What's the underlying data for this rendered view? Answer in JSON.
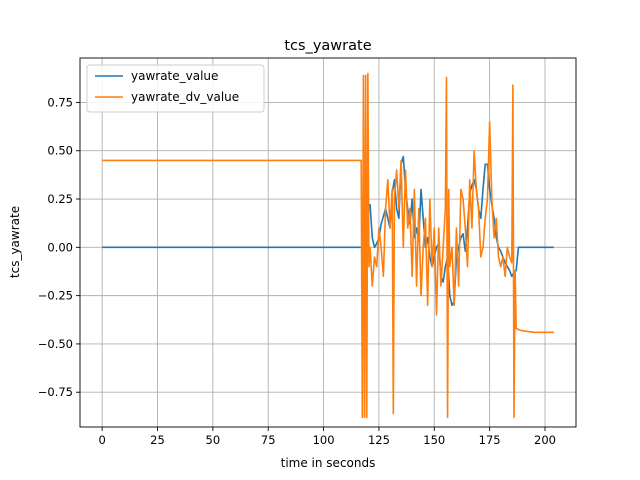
{
  "chart_data": {
    "type": "line",
    "title": "tcs_yawrate",
    "xlabel": "time in seconds",
    "ylabel": "tcs_yawrate",
    "xlim": [
      -10,
      214
    ],
    "ylim": [
      -0.93,
      0.98
    ],
    "xticks": [
      0,
      25,
      50,
      75,
      100,
      125,
      150,
      175,
      200
    ],
    "yticks": [
      -0.75,
      -0.5,
      -0.25,
      0.0,
      0.25,
      0.5,
      0.75
    ],
    "xtick_labels": [
      "0",
      "25",
      "50",
      "75",
      "100",
      "125",
      "150",
      "175",
      "200"
    ],
    "ytick_labels": [
      "−0.75",
      "−0.50",
      "−0.25",
      "0.00",
      "0.25",
      "0.50",
      "0.75"
    ],
    "grid": true,
    "legend_position": "top-left",
    "series": [
      {
        "name": "yawrate_value",
        "color": "#1f77b4",
        "x": [
          0,
          117,
          118,
          119,
          120,
          121,
          122,
          123,
          124,
          125,
          126,
          128,
          130,
          131,
          132,
          133,
          134,
          135,
          136,
          137,
          138,
          139,
          140,
          141,
          142,
          143,
          144,
          145,
          146,
          147,
          148,
          149,
          150,
          151,
          152,
          153,
          154,
          155,
          156,
          157,
          158,
          159,
          160,
          161,
          162,
          163,
          164,
          165,
          166,
          167,
          168,
          169,
          170,
          171,
          172,
          173,
          174,
          175,
          176,
          177,
          178,
          179,
          180,
          181,
          182,
          183,
          184,
          185,
          186,
          187,
          188,
          204
        ],
        "y": [
          0,
          0,
          0.01,
          0.05,
          0.22,
          0.22,
          0.05,
          0.0,
          0.02,
          0.05,
          0.12,
          0.2,
          0.1,
          0.28,
          0.35,
          0.2,
          0.15,
          0.43,
          0.47,
          0.3,
          0.2,
          0.12,
          0.25,
          0.05,
          0.1,
          0.03,
          0.3,
          0.15,
          0.0,
          0.05,
          -0.05,
          -0.1,
          -0.05,
          0.0,
          0.02,
          -0.15,
          -0.18,
          -0.1,
          -0.05,
          -0.25,
          -0.3,
          -0.28,
          -0.05,
          0.0,
          0.05,
          0.07,
          -0.02,
          0.1,
          0.28,
          0.32,
          0.35,
          0.3,
          0.2,
          0.15,
          0.3,
          0.43,
          0.43,
          0.3,
          0.22,
          0.15,
          0.05,
          0.0,
          -0.02,
          -0.05,
          -0.08,
          -0.1,
          -0.12,
          -0.15,
          -0.13,
          -0.12,
          0.0,
          0.0
        ]
      },
      {
        "name": "yawrate_dv_value",
        "color": "#ff7f0e",
        "x": [
          0,
          117,
          117.5,
          118,
          118.5,
          119,
          119.5,
          120,
          120.5,
          121,
          122,
          123,
          124,
          125,
          126,
          127,
          128,
          129,
          130,
          131,
          131.5,
          132,
          133,
          134,
          135,
          136,
          137,
          138,
          139,
          140,
          141,
          142,
          143,
          144,
          145,
          146,
          147,
          148,
          149,
          150,
          151,
          152,
          153,
          154,
          155,
          155.5,
          156,
          156.5,
          157,
          158,
          159,
          160,
          161,
          162,
          163,
          164,
          165,
          166,
          167,
          168,
          169,
          170,
          171,
          172,
          173,
          174,
          175,
          176,
          177,
          178,
          179,
          180,
          181,
          182,
          183,
          184,
          185,
          185.5,
          186,
          186.5,
          187,
          189,
          195,
          204
        ],
        "y": [
          0.45,
          0.45,
          -0.88,
          0.89,
          -0.88,
          0.89,
          -0.88,
          0.9,
          -0.1,
          0.0,
          -0.2,
          -0.05,
          -0.1,
          0.1,
          0.0,
          -0.15,
          0.2,
          0.35,
          0.1,
          0.3,
          -0.86,
          0.25,
          0.4,
          0.2,
          0.45,
          0.0,
          0.4,
          0.1,
          0.2,
          -0.15,
          0.3,
          -0.2,
          0.2,
          -0.25,
          0.0,
          0.15,
          -0.3,
          0.25,
          -0.1,
          0.1,
          -0.35,
          0.1,
          -0.2,
          0.0,
          0.2,
          0.88,
          -0.88,
          0.3,
          -0.1,
          0.0,
          -0.3,
          0.1,
          -0.2,
          0.3,
          0.25,
          0.1,
          -0.1,
          0.35,
          0.1,
          0.5,
          0.3,
          0.2,
          -0.05,
          0.0,
          0.15,
          0.25,
          0.65,
          0.25,
          0.05,
          0.15,
          -0.05,
          -0.1,
          -0.05,
          -0.15,
          0.0,
          -0.05,
          -0.08,
          0.84,
          -0.88,
          -0.12,
          -0.42,
          -0.43,
          -0.44,
          -0.44
        ]
      }
    ]
  }
}
